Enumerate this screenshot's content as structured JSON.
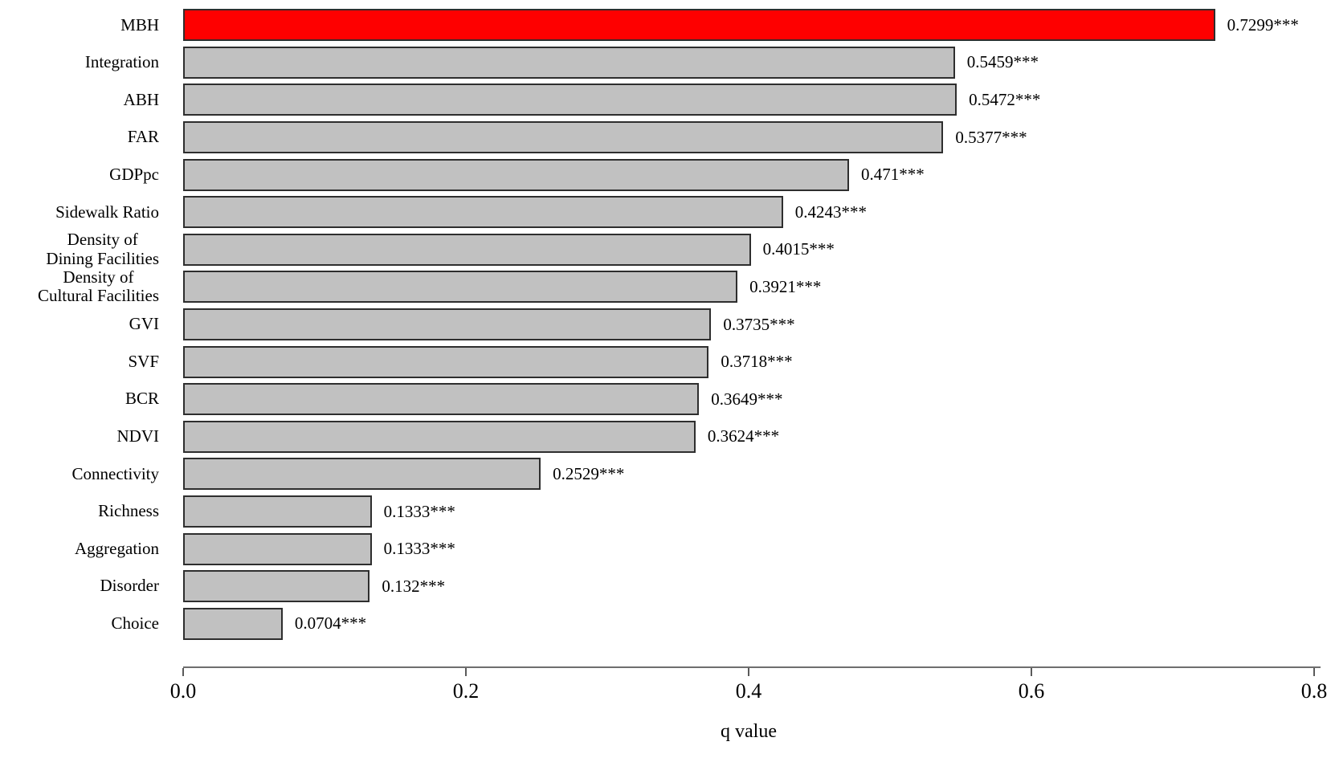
{
  "chart_data": {
    "type": "bar",
    "orientation": "horizontal",
    "title": "",
    "xlabel": "q value",
    "ylabel": "",
    "xlim": [
      0,
      0.8
    ],
    "xticks": [
      {
        "value": 0.0,
        "label": "0.0"
      },
      {
        "value": 0.2,
        "label": "0.2"
      },
      {
        "value": 0.4,
        "label": "0.4"
      },
      {
        "value": 0.6,
        "label": "0.6"
      },
      {
        "value": 0.8,
        "label": "0.8"
      }
    ],
    "grid": false,
    "legend": false,
    "bars": [
      {
        "label": "MBH",
        "value": 0.7299,
        "value_label": "0.7299***",
        "color": "#fe0000"
      },
      {
        "label": "Integration",
        "value": 0.5459,
        "value_label": "0.5459***",
        "color": "#c1c1c1"
      },
      {
        "label": "ABH",
        "value": 0.5472,
        "value_label": "0.5472***",
        "color": "#c1c1c1"
      },
      {
        "label": "FAR",
        "value": 0.5377,
        "value_label": "0.5377***",
        "color": "#c1c1c1"
      },
      {
        "label": "GDPpc",
        "value": 0.471,
        "value_label": "0.471***",
        "color": "#c1c1c1"
      },
      {
        "label": "Sidewalk Ratio",
        "value": 0.4243,
        "value_label": "0.4243***",
        "color": "#c1c1c1"
      },
      {
        "label": "Density of\nDining Facilities",
        "value": 0.4015,
        "value_label": "0.4015***",
        "color": "#c1c1c1"
      },
      {
        "label": "Density of\nCultural Facilities",
        "value": 0.3921,
        "value_label": "0.3921***",
        "color": "#c1c1c1"
      },
      {
        "label": "GVI",
        "value": 0.3735,
        "value_label": "0.3735***",
        "color": "#c1c1c1"
      },
      {
        "label": "SVF",
        "value": 0.3718,
        "value_label": "0.3718***",
        "color": "#c1c1c1"
      },
      {
        "label": "BCR",
        "value": 0.3649,
        "value_label": "0.3649***",
        "color": "#c1c1c1"
      },
      {
        "label": "NDVI",
        "value": 0.3624,
        "value_label": "0.3624***",
        "color": "#c1c1c1"
      },
      {
        "label": "Connectivity",
        "value": 0.2529,
        "value_label": "0.2529***",
        "color": "#c1c1c1"
      },
      {
        "label": "Richness",
        "value": 0.1333,
        "value_label": "0.1333***",
        "color": "#c1c1c1"
      },
      {
        "label": "Aggregation",
        "value": 0.1333,
        "value_label": "0.1333***",
        "color": "#c1c1c1"
      },
      {
        "label": "Disorder",
        "value": 0.132,
        "value_label": "0.132***",
        "color": "#c1c1c1"
      },
      {
        "label": "Choice",
        "value": 0.0704,
        "value_label": "0.0704***",
        "color": "#c1c1c1"
      }
    ],
    "colors": {
      "highlight_bar": "#fe0000",
      "default_bar": "#c1c1c1",
      "bar_edge": "#2e2e2e",
      "axis_line": "#6e6e6e"
    }
  }
}
